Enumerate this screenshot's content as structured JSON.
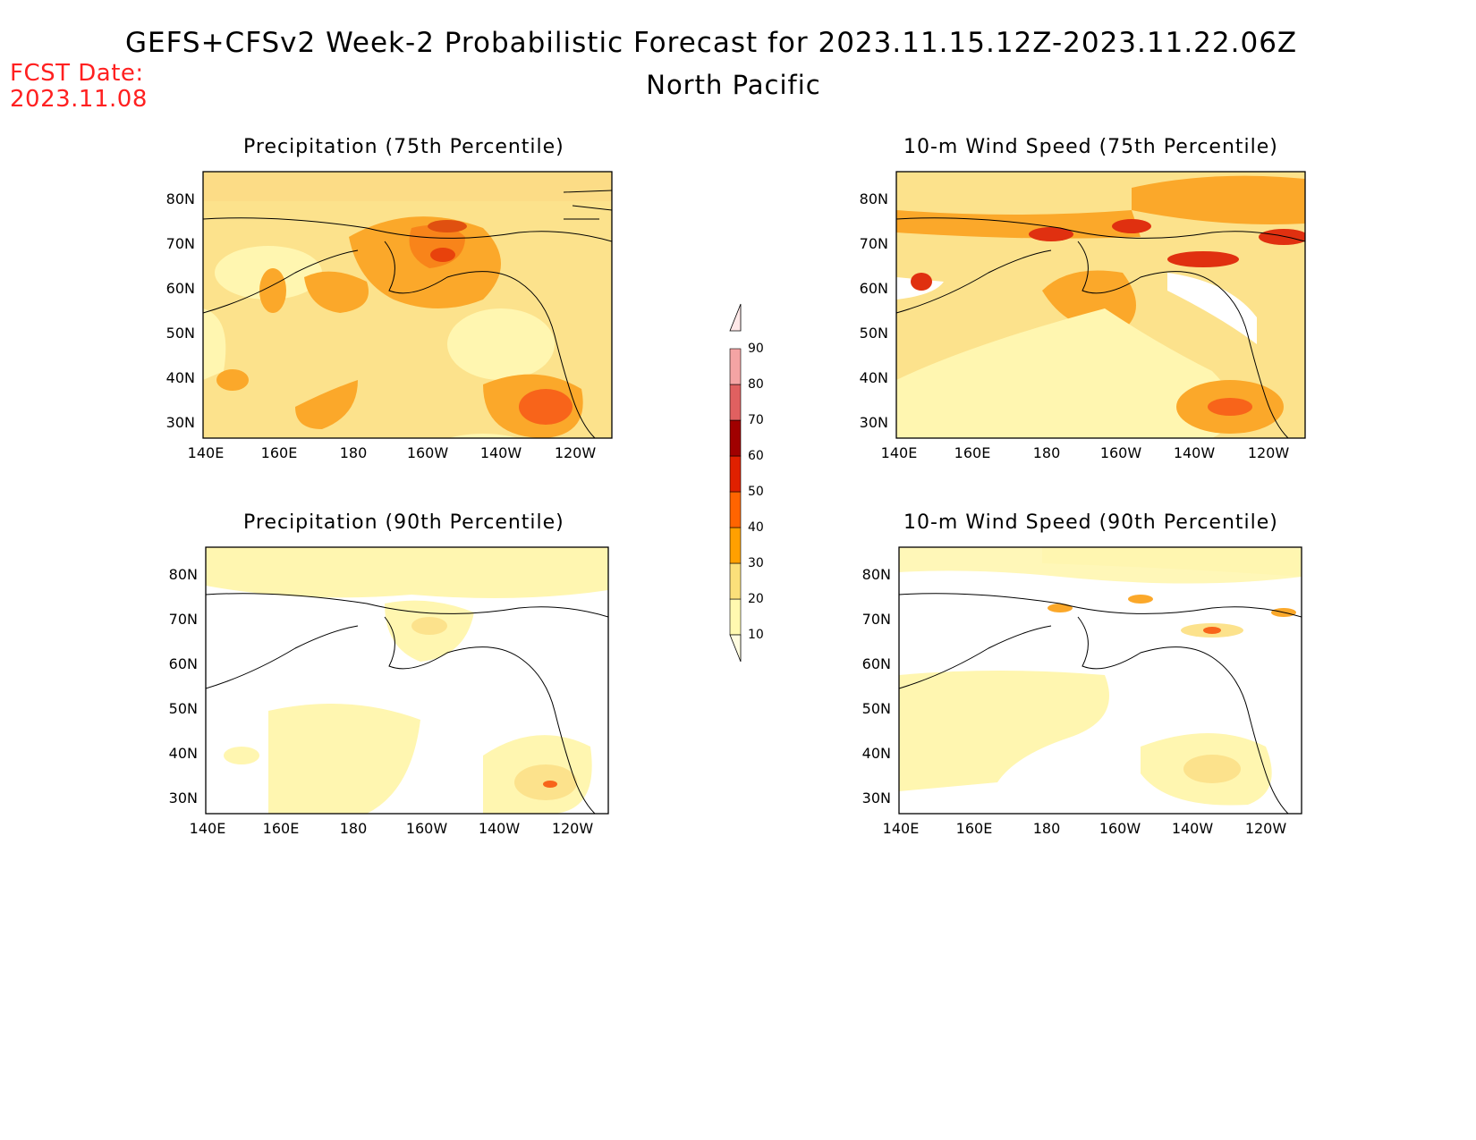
{
  "header": {
    "title": "GEFS+CFSv2 Week-2 Probabilistic Forecast for 2023.11.15.12Z-2023.11.22.06Z",
    "region": "North Pacific",
    "fcst_label": "FCST Date:",
    "fcst_date": "2023.11.08"
  },
  "panels": [
    {
      "title": "Precipitation (75th Percentile)"
    },
    {
      "title": "10-m Wind Speed (75th Percentile)"
    },
    {
      "title": "Precipitation (90th Percentile)"
    },
    {
      "title": "10-m Wind Speed (90th Percentile)"
    }
  ],
  "axes": {
    "lat_ticks": [
      "80N",
      "70N",
      "60N",
      "50N",
      "40N",
      "30N"
    ],
    "lon_ticks": [
      "140E",
      "160E",
      "180",
      "160W",
      "140W",
      "120W"
    ]
  },
  "colorbar": {
    "levels": [
      "10",
      "20",
      "30",
      "40",
      "50",
      "60",
      "70",
      "80",
      "90"
    ],
    "colors": [
      "#fff9b0",
      "#fbe07a",
      "#ffa000",
      "#ff6400",
      "#e02000",
      "#a00000",
      "#e06060",
      "#f4a4a4",
      "#ffe0e0"
    ]
  }
}
